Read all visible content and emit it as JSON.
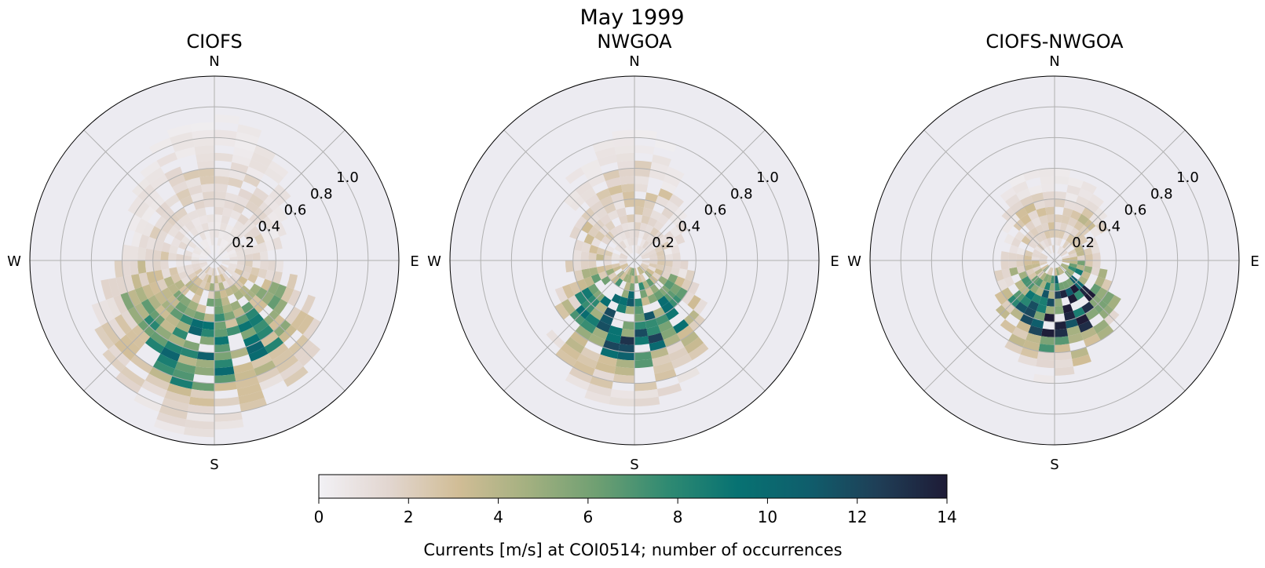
{
  "chart_data": {
    "type": "heatmap",
    "subtype": "polar-histogram",
    "title": "May 1999",
    "colorbar": {
      "label": "Currents [m/s] at COI0514; number of occurrences",
      "range": [
        0,
        14
      ],
      "ticks": [
        "0",
        "2",
        "4",
        "6",
        "8",
        "10",
        "12",
        "14"
      ],
      "colors": [
        "#f2f1f5",
        "#e2d6d0",
        "#d1bd96",
        "#a3b080",
        "#6e9f72",
        "#2f8a72",
        "#077272",
        "#0f5e6c",
        "#1f3f57",
        "#1e1b36"
      ]
    },
    "axes": {
      "direction_labels": [
        "N",
        "E",
        "S",
        "W"
      ],
      "radial_ticks": [
        "0.2",
        "0.4",
        "0.6",
        "0.8",
        "1.0"
      ],
      "rmax": 1.2,
      "direction_bins": 36,
      "speed_bin_width": 0.05,
      "grid": true,
      "background": "#ecebf1"
    },
    "panels": [
      {
        "title": "CIOFS",
        "shape": {
          "r_by_direction": [
            0.92,
            0.88,
            0.8,
            0.72,
            0.65,
            0.55,
            0.48,
            0.42,
            0.4,
            0.42,
            0.55,
            0.7,
            0.8,
            0.88,
            0.92,
            0.95,
            1.0,
            1.08,
            1.15,
            1.12,
            1.08,
            1.0,
            0.95,
            0.88,
            0.85,
            0.75,
            0.65,
            0.58,
            0.55,
            0.58,
            0.62,
            0.7,
            0.78,
            0.85,
            0.9,
            0.92
          ],
          "peak_direction_deg": 180,
          "peak_speed": 0.6,
          "max_count": 9.5,
          "spread": 0.45,
          "seed": 11
        }
      },
      {
        "title": "NWGOA",
        "shape": {
          "r_by_direction": [
            0.88,
            0.8,
            0.65,
            0.5,
            0.45,
            0.38,
            0.32,
            0.28,
            0.3,
            0.32,
            0.38,
            0.45,
            0.55,
            0.6,
            0.75,
            0.82,
            0.88,
            0.92,
            0.95,
            0.92,
            0.88,
            0.8,
            0.72,
            0.62,
            0.55,
            0.45,
            0.42,
            0.4,
            0.4,
            0.45,
            0.5,
            0.6,
            0.68,
            0.75,
            0.8,
            0.85
          ],
          "peak_direction_deg": 185,
          "peak_speed": 0.45,
          "max_count": 11.5,
          "spread": 0.4,
          "seed": 29
        }
      },
      {
        "title": "CIOFS-NWGOA",
        "shape": {
          "r_by_direction": [
            0.58,
            0.55,
            0.55,
            0.5,
            0.45,
            0.38,
            0.32,
            0.28,
            0.28,
            0.3,
            0.35,
            0.4,
            0.48,
            0.55,
            0.6,
            0.65,
            0.68,
            0.72,
            0.78,
            0.68,
            0.62,
            0.55,
            0.5,
            0.45,
            0.42,
            0.38,
            0.35,
            0.32,
            0.3,
            0.32,
            0.38,
            0.45,
            0.55,
            0.6,
            0.58,
            0.56
          ],
          "peak_direction_deg": 165,
          "peak_speed": 0.35,
          "max_count": 14,
          "spread": 0.35,
          "seed": 53
        }
      }
    ]
  }
}
